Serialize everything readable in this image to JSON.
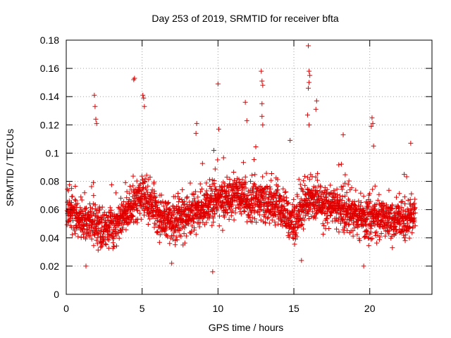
{
  "chart_data": {
    "type": "scatter",
    "title": "Day 253 of 2019, SRMTID for receiver bfta",
    "xlabel": "GPS time / hours",
    "ylabel": "SRMTID / TECUs",
    "xlim": [
      0,
      24.1
    ],
    "ylim": [
      0,
      0.18
    ],
    "x_ticks": [
      0,
      5,
      10,
      15,
      20
    ],
    "x_tick_labels": [
      "0",
      "5",
      "10",
      "15",
      "20"
    ],
    "y_ticks": [
      0,
      0.02,
      0.04,
      0.06,
      0.08,
      0.1,
      0.12,
      0.14,
      0.16,
      0.18
    ],
    "y_tick_labels": [
      "0",
      "0.02",
      "0.04",
      "0.06",
      "0.08",
      "0.1",
      "0.12",
      "0.14",
      "0.16",
      "0.18"
    ],
    "grid": true,
    "marker": "+",
    "color": "#e00000",
    "series": [
      {
        "name": "bfta",
        "x_range": [
          0.0,
          23.0
        ],
        "baseline_profile": [
          [
            0.0,
            0.06
          ],
          [
            0.5,
            0.058
          ],
          [
            1.0,
            0.052
          ],
          [
            2.0,
            0.048
          ],
          [
            3.0,
            0.047
          ],
          [
            4.0,
            0.058
          ],
          [
            5.0,
            0.07
          ],
          [
            6.0,
            0.058
          ],
          [
            7.0,
            0.05
          ],
          [
            8.0,
            0.058
          ],
          [
            9.0,
            0.06
          ],
          [
            10.0,
            0.068
          ],
          [
            11.0,
            0.07
          ],
          [
            12.0,
            0.066
          ],
          [
            13.0,
            0.066
          ],
          [
            14.0,
            0.063
          ],
          [
            15.0,
            0.05
          ],
          [
            16.0,
            0.068
          ],
          [
            17.0,
            0.064
          ],
          [
            18.0,
            0.061
          ],
          [
            19.0,
            0.056
          ],
          [
            20.0,
            0.055
          ],
          [
            21.0,
            0.053
          ],
          [
            22.0,
            0.052
          ],
          [
            23.0,
            0.055
          ]
        ],
        "scatter_spread": 0.012,
        "min_value": 0.015,
        "n_points": 2600,
        "outliers": [
          [
            4.45,
            0.152
          ],
          [
            4.5,
            0.153
          ],
          [
            5.05,
            0.141
          ],
          [
            5.1,
            0.139
          ],
          [
            5.15,
            0.133
          ],
          [
            1.85,
            0.141
          ],
          [
            1.9,
            0.133
          ],
          [
            1.95,
            0.124
          ],
          [
            2.0,
            0.121
          ],
          [
            8.6,
            0.121
          ],
          [
            8.55,
            0.114
          ],
          [
            10.0,
            0.149
          ],
          [
            10.05,
            0.117
          ],
          [
            12.85,
            0.158
          ],
          [
            12.9,
            0.151
          ],
          [
            12.95,
            0.148
          ],
          [
            12.9,
            0.135
          ],
          [
            12.9,
            0.126
          ],
          [
            12.95,
            0.12
          ],
          [
            11.8,
            0.136
          ],
          [
            11.9,
            0.123
          ],
          [
            14.75,
            0.109
          ],
          [
            15.95,
            0.176
          ],
          [
            16.0,
            0.158
          ],
          [
            16.05,
            0.155
          ],
          [
            16.0,
            0.15
          ],
          [
            15.95,
            0.146
          ],
          [
            15.9,
            0.127
          ],
          [
            16.0,
            0.12
          ],
          [
            16.5,
            0.137
          ],
          [
            16.45,
            0.131
          ],
          [
            18.25,
            0.113
          ],
          [
            20.15,
            0.125
          ],
          [
            20.2,
            0.121
          ],
          [
            20.1,
            0.119
          ],
          [
            20.25,
            0.105
          ],
          [
            22.7,
            0.107
          ],
          [
            9.65,
            0.016
          ],
          [
            1.3,
            0.02
          ],
          [
            6.95,
            0.022
          ],
          [
            15.5,
            0.024
          ],
          [
            19.6,
            0.02
          ]
        ]
      }
    ]
  }
}
